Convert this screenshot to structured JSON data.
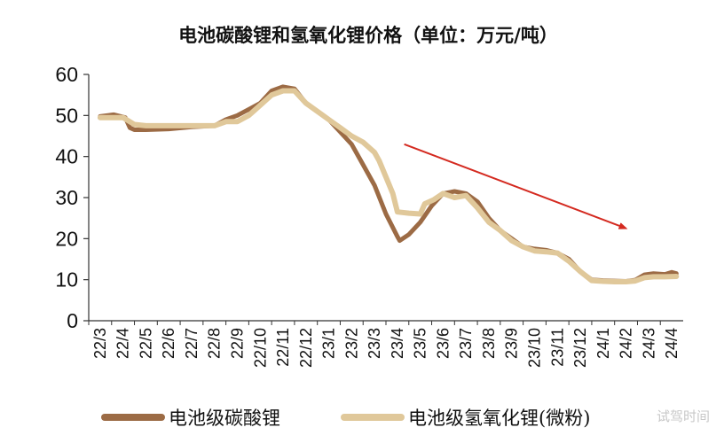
{
  "chart_data": {
    "type": "line",
    "title": "电池碳酸锂和氢氧化锂价格（单位：万元/吨）",
    "xlabel": "",
    "ylabel": "",
    "ylim": [
      0,
      60
    ],
    "yticks": [
      0,
      10,
      20,
      30,
      40,
      50,
      60
    ],
    "categories": [
      "22/3",
      "22/4",
      "22/5",
      "22/6",
      "22/7",
      "22/8",
      "22/9",
      "22/10",
      "22/11",
      "22/12",
      "23/1",
      "23/2",
      "23/3",
      "23/4",
      "23/5",
      "23/6",
      "23/7",
      "23/8",
      "23/9",
      "23/10",
      "23/11",
      "23/12",
      "24/1",
      "24/2",
      "24/3",
      "24/4"
    ],
    "grid": false,
    "legend_position": "bottom",
    "arrow": {
      "from": [
        13.3,
        43
      ],
      "to": [
        23.0,
        22.5
      ],
      "color": "#d42a20"
    },
    "series": [
      {
        "name": "电池级碳酸锂",
        "color": "#9c6b45",
        "points": [
          [
            0,
            49.8
          ],
          [
            0.6,
            50.2
          ],
          [
            1.1,
            49.5
          ],
          [
            1.3,
            47
          ],
          [
            1.5,
            46.5
          ],
          [
            2,
            46.5
          ],
          [
            3,
            46.7
          ],
          [
            4,
            47.2
          ],
          [
            5,
            47.5
          ],
          [
            5.5,
            49
          ],
          [
            6,
            50
          ],
          [
            6.5,
            51.5
          ],
          [
            7,
            53
          ],
          [
            7.5,
            56
          ],
          [
            8,
            57
          ],
          [
            8.5,
            56.5
          ],
          [
            9,
            53
          ],
          [
            10,
            49
          ],
          [
            10.5,
            46
          ],
          [
            11,
            43
          ],
          [
            11.5,
            38
          ],
          [
            12,
            33
          ],
          [
            12.5,
            26
          ],
          [
            13,
            20.5
          ],
          [
            13.1,
            19.5
          ],
          [
            13.5,
            21
          ],
          [
            14,
            24
          ],
          [
            14.5,
            28
          ],
          [
            15,
            31
          ],
          [
            15.5,
            31.5
          ],
          [
            16,
            31
          ],
          [
            16.5,
            29
          ],
          [
            17,
            25
          ],
          [
            17.5,
            22
          ],
          [
            18,
            20
          ],
          [
            18.5,
            18
          ],
          [
            19,
            17.5
          ],
          [
            19.5,
            17.2
          ],
          [
            20,
            16.5
          ],
          [
            20.5,
            15
          ],
          [
            21,
            12
          ],
          [
            21.5,
            10
          ],
          [
            22,
            9.8
          ],
          [
            22.5,
            9.7
          ],
          [
            23,
            9.6
          ],
          [
            23.4,
            9.9
          ],
          [
            23.8,
            11.2
          ],
          [
            24.2,
            11.5
          ],
          [
            24.7,
            11.3
          ],
          [
            25,
            11.8
          ],
          [
            25.2,
            11.5
          ]
        ]
      },
      {
        "name": "电池级氢氧化锂(微粉)",
        "color": "#e0c89a",
        "points": [
          [
            0,
            49.5
          ],
          [
            1,
            49.5
          ],
          [
            1.5,
            47.8
          ],
          [
            2,
            47.5
          ],
          [
            3,
            47.5
          ],
          [
            4,
            47.5
          ],
          [
            5,
            47.5
          ],
          [
            5.5,
            48.5
          ],
          [
            6,
            48.5
          ],
          [
            6.5,
            50
          ],
          [
            7,
            52.5
          ],
          [
            7.5,
            55
          ],
          [
            8,
            56
          ],
          [
            8.5,
            56
          ],
          [
            9,
            53
          ],
          [
            10,
            49
          ],
          [
            10.5,
            47
          ],
          [
            11,
            45
          ],
          [
            11.5,
            43.5
          ],
          [
            12,
            41
          ],
          [
            12.2,
            39
          ],
          [
            12.5,
            35
          ],
          [
            12.8,
            31
          ],
          [
            13,
            26.5
          ],
          [
            13.5,
            26.2
          ],
          [
            14,
            26
          ],
          [
            14.2,
            28.5
          ],
          [
            14.6,
            29.5
          ],
          [
            15,
            31
          ],
          [
            15.5,
            30
          ],
          [
            16,
            30.5
          ],
          [
            16.5,
            27.5
          ],
          [
            17,
            24
          ],
          [
            17.5,
            22
          ],
          [
            18,
            19.5
          ],
          [
            18.5,
            18
          ],
          [
            19,
            17
          ],
          [
            19.5,
            16.8
          ],
          [
            20,
            16.5
          ],
          [
            20.5,
            14.5
          ],
          [
            21,
            12
          ],
          [
            21.5,
            9.8
          ],
          [
            22,
            9.6
          ],
          [
            22.5,
            9.5
          ],
          [
            23,
            9.5
          ],
          [
            23.4,
            9.7
          ],
          [
            23.8,
            10.5
          ],
          [
            24.2,
            10.7
          ],
          [
            24.7,
            10.7
          ],
          [
            25.2,
            10.8
          ]
        ]
      }
    ]
  },
  "watermark": "试驾时间"
}
